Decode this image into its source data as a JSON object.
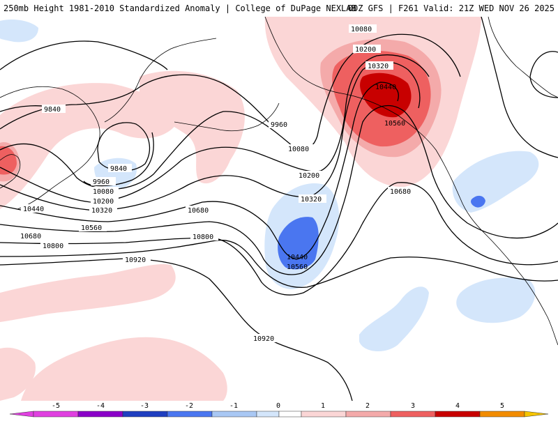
{
  "header": {
    "title_left": "250mb Height 1981-2010 Standardized Anomaly | College of DuPage NEXLAB",
    "title_right": "00Z GFS | F261 Valid: 21Z WED NOV 26 2025"
  },
  "colors": {
    "neg5": "#e040e0",
    "neg4": "#8a00c8",
    "neg3": "#1f3fc0",
    "neg2": "#4a76f0",
    "neg1": "#a9c8f4",
    "neg0": "#d4e6fb",
    "pos0": "#fbd6d6",
    "pos1": "#f4aaaa",
    "pos2": "#ee6060",
    "pos3": "#c80000",
    "pos4": "#f28c00",
    "pos5": "#f5c400",
    "contour": "#000000",
    "coast": "#000000"
  },
  "colorbar": {
    "ticks": [
      "-5",
      "-4",
      "-3",
      "-2",
      "-1",
      "0",
      "1",
      "2",
      "3",
      "4",
      "5"
    ]
  },
  "contour_labels": {
    "l9840a": "9840",
    "l9840b": "9840",
    "l9960a": "9960",
    "l9960b": "9960",
    "l10080a": "10080",
    "l10080b": "10080",
    "l10080c": "10080",
    "l10200a": "10200",
    "l10200b": "10200",
    "l10200c": "10200",
    "l10320a": "10320",
    "l10320b": "10320",
    "l10320c": "10320",
    "l10440a": "10440",
    "l10440b": "10440",
    "l10440c": "10440",
    "l10560a": "10560",
    "l10560b": "10560",
    "l10560c": "10560",
    "l10680a": "10680",
    "l10680b": "10680",
    "l10680c": "10680",
    "l10800a": "10800",
    "l10800b": "10800",
    "l10920a": "10920",
    "l10920b": "10920"
  }
}
